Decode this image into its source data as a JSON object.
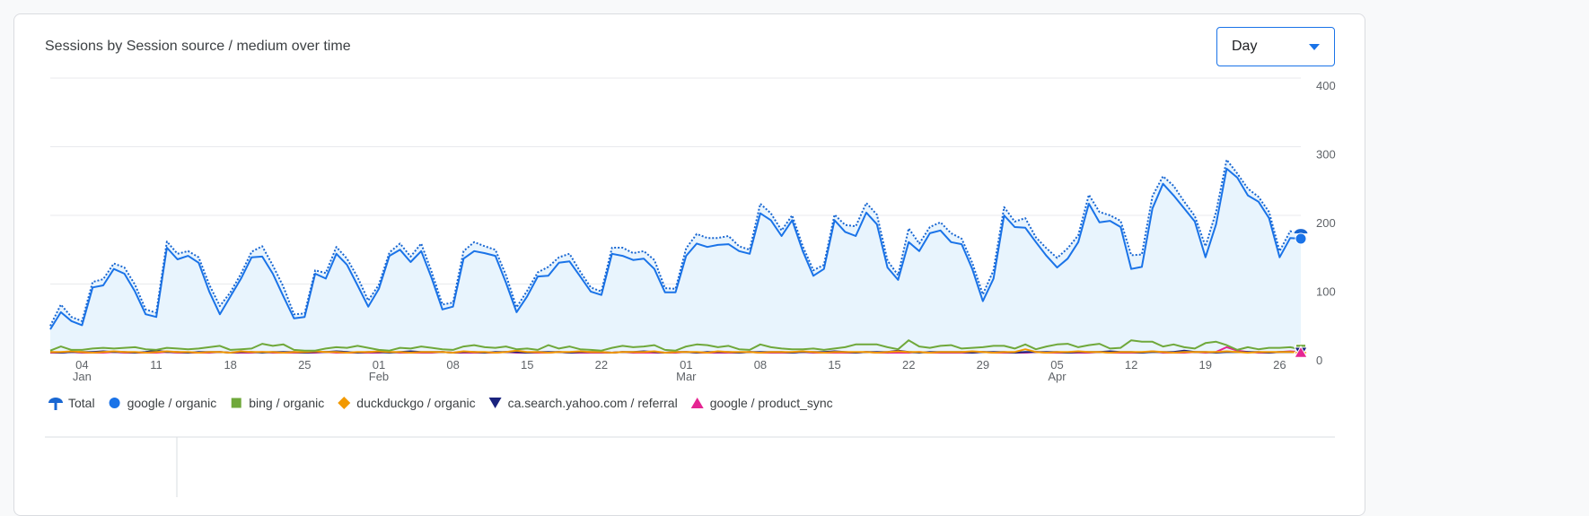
{
  "dropdown": {
    "label": "Day"
  },
  "chart_data": {
    "type": "line",
    "title": "Sessions by Session source / medium over time",
    "categories": [
      null,
      null,
      null,
      "04",
      null,
      null,
      null,
      null,
      null,
      null,
      "11",
      null,
      null,
      null,
      null,
      null,
      null,
      "18",
      null,
      null,
      null,
      null,
      null,
      null,
      "25",
      null,
      null,
      null,
      null,
      null,
      null,
      "01",
      null,
      null,
      null,
      null,
      null,
      null,
      "08",
      null,
      null,
      null,
      null,
      null,
      null,
      "15",
      null,
      null,
      null,
      null,
      null,
      null,
      "22",
      null,
      null,
      null,
      null,
      null,
      null,
      null,
      "01",
      null,
      null,
      null,
      null,
      null,
      null,
      "08",
      null,
      null,
      null,
      null,
      null,
      null,
      "15",
      null,
      null,
      null,
      null,
      null,
      null,
      "22",
      null,
      null,
      null,
      null,
      null,
      null,
      "29",
      null,
      null,
      null,
      null,
      null,
      null,
      "05",
      null,
      null,
      null,
      null,
      null,
      null,
      "12",
      null,
      null,
      null,
      null,
      null,
      null,
      "19",
      null,
      null,
      null,
      null,
      null,
      null,
      "26",
      null,
      null
    ],
    "month_labels": [
      null,
      null,
      null,
      "Jan",
      null,
      null,
      null,
      null,
      null,
      null,
      null,
      null,
      null,
      null,
      null,
      null,
      null,
      null,
      null,
      null,
      null,
      null,
      null,
      null,
      null,
      null,
      null,
      null,
      null,
      null,
      null,
      "Feb",
      null,
      null,
      null,
      null,
      null,
      null,
      null,
      null,
      null,
      null,
      null,
      null,
      null,
      null,
      null,
      null,
      null,
      null,
      null,
      null,
      null,
      null,
      null,
      null,
      null,
      null,
      null,
      null,
      "Mar",
      null,
      null,
      null,
      null,
      null,
      null,
      null,
      null,
      null,
      null,
      null,
      null,
      null,
      null,
      null,
      null,
      null,
      null,
      null,
      null,
      null,
      null,
      null,
      null,
      null,
      null,
      null,
      null,
      null,
      null,
      null,
      null,
      null,
      null,
      "Apr",
      null,
      null,
      null,
      null,
      null,
      null,
      null,
      null,
      null,
      null,
      null,
      null,
      null,
      null,
      null,
      null,
      null,
      null,
      null,
      null,
      null,
      null,
      null
    ],
    "ylim": [
      0,
      400
    ],
    "yticks": [
      0,
      100,
      200,
      300,
      400
    ],
    "grid": true,
    "series": [
      {
        "name": "Total",
        "color": "#1967d2",
        "marker": "pin",
        "style": "dotted",
        "area": "#e8f4fd",
        "values": [
          39,
          70,
          52,
          46,
          103,
          107,
          130,
          124,
          99,
          63,
          58,
          162,
          144,
          148,
          139,
          99,
          68,
          88,
          115,
          147,
          155,
          127,
          96,
          56,
          57,
          120,
          116,
          154,
          137,
          110,
          76,
          99,
          146,
          159,
          140,
          159,
          117,
          70,
          73,
          148,
          161,
          155,
          150,
          113,
          66,
          90,
          117,
          125,
          139,
          144,
          118,
          95,
          89,
          153,
          153,
          145,
          148,
          135,
          94,
          93,
          152,
          173,
          167,
          167,
          170,
          155,
          150,
          217,
          203,
          178,
          200,
          155,
          120,
          128,
          201,
          186,
          184,
          218,
          201,
          134,
          113,
          181,
          159,
          183,
          190,
          174,
          166,
          131,
          85,
          120,
          212,
          191,
          196,
          168,
          152,
          138,
          152,
          171,
          230,
          205,
          200,
          192,
          142,
          143,
          228,
          257,
          243,
          220,
          199,
          155,
          205,
          281,
          261,
          239,
          227,
          205,
          148,
          177,
          173
        ]
      },
      {
        "name": "google / organic",
        "color": "#1a73e8",
        "marker": "circle",
        "style": "solid",
        "values": [
          34,
          59,
          46,
          40,
          95,
          98,
          122,
          115,
          89,
          56,
          52,
          153,
          136,
          141,
          131,
          89,
          56,
          82,
          108,
          139,
          140,
          115,
          82,
          50,
          52,
          115,
          108,
          144,
          128,
          98,
          67,
          93,
          141,
          150,
          132,
          148,
          108,
          63,
          67,
          137,
          148,
          145,
          141,
          102,
          59,
          82,
          111,
          112,
          131,
          133,
          111,
          89,
          84,
          144,
          141,
          135,
          137,
          122,
          88,
          88,
          141,
          159,
          154,
          157,
          158,
          148,
          144,
          203,
          193,
          170,
          193,
          148,
          112,
          122,
          193,
          176,
          170,
          204,
          187,
          124,
          106,
          161,
          148,
          174,
          178,
          161,
          158,
          122,
          75,
          108,
          200,
          183,
          182,
          161,
          141,
          124,
          137,
          161,
          217,
          190,
          192,
          183,
          122,
          125,
          210,
          246,
          229,
          210,
          191,
          139,
          187,
          268,
          255,
          229,
          220,
          196,
          139,
          167,
          166
        ]
      },
      {
        "name": "bing / organic",
        "color": "#6fa83a",
        "marker": "square",
        "style": "solid",
        "values": [
          3,
          9,
          4,
          4,
          6,
          7,
          6,
          7,
          8,
          5,
          4,
          7,
          6,
          5,
          6,
          8,
          10,
          4,
          5,
          6,
          13,
          10,
          12,
          4,
          3,
          3,
          6,
          8,
          7,
          10,
          7,
          4,
          3,
          7,
          6,
          9,
          7,
          5,
          4,
          9,
          11,
          8,
          7,
          9,
          5,
          6,
          4,
          11,
          6,
          9,
          5,
          4,
          3,
          7,
          10,
          8,
          9,
          11,
          4,
          3,
          9,
          12,
          11,
          8,
          10,
          5,
          4,
          12,
          8,
          6,
          5,
          5,
          6,
          4,
          6,
          8,
          12,
          12,
          12,
          8,
          5,
          18,
          9,
          7,
          10,
          11,
          6,
          7,
          8,
          10,
          10,
          6,
          12,
          5,
          9,
          12,
          13,
          8,
          11,
          13,
          6,
          7,
          18,
          16,
          16,
          9,
          12,
          8,
          6,
          14,
          16,
          11,
          4,
          8,
          5,
          7,
          7,
          8,
          5
        ]
      },
      {
        "name": "duckduckgo / organic",
        "color": "#f29900",
        "marker": "diamond",
        "style": "solid",
        "values": [
          1,
          1,
          2,
          1,
          0,
          1,
          2,
          1,
          1,
          0,
          1,
          2,
          1,
          1,
          0,
          1,
          1,
          0,
          2,
          1,
          1,
          1,
          0,
          1,
          1,
          2,
          1,
          1,
          0,
          1,
          1,
          2,
          1,
          1,
          0,
          1,
          1,
          1,
          0,
          2,
          1,
          1,
          0,
          1,
          3,
          1,
          1,
          0,
          1,
          1,
          2,
          1,
          1,
          0,
          1,
          1,
          1,
          2,
          0,
          1,
          1,
          1,
          0,
          2,
          1,
          1,
          1,
          0,
          1,
          1,
          1,
          2,
          1,
          0,
          1,
          1,
          1,
          1,
          0,
          1,
          2,
          1,
          1,
          0,
          1,
          1,
          1,
          2,
          1,
          0,
          1,
          1,
          5,
          1,
          0,
          1,
          1,
          2,
          1,
          1,
          0,
          1,
          1,
          1,
          2,
          1,
          0,
          1,
          1,
          1,
          1,
          2,
          1,
          0,
          1,
          1,
          1,
          1,
          0
        ]
      },
      {
        "name": "ca.search.yahoo.com / referral",
        "color": "#1a237e",
        "marker": "triangle-down",
        "style": "solid",
        "values": [
          1,
          0,
          1,
          1,
          1,
          2,
          1,
          1,
          0,
          1,
          3,
          1,
          1,
          0,
          1,
          1,
          1,
          0,
          1,
          1,
          0,
          1,
          1,
          1,
          0,
          1,
          1,
          2,
          1,
          0,
          1,
          1,
          0,
          1,
          2,
          1,
          1,
          1,
          0,
          1,
          1,
          0,
          1,
          1,
          1,
          0,
          1,
          1,
          1,
          0,
          1,
          1,
          1,
          0,
          1,
          1,
          2,
          1,
          0,
          1,
          1,
          0,
          1,
          1,
          1,
          0,
          1,
          1,
          1,
          1,
          0,
          1,
          1,
          1,
          2,
          1,
          0,
          1,
          1,
          1,
          3,
          1,
          0,
          1,
          1,
          1,
          1,
          0,
          1,
          1,
          1,
          0,
          1,
          1,
          1,
          1,
          0,
          1,
          1,
          1,
          2,
          1,
          1,
          0,
          1,
          1,
          1,
          3,
          1,
          1,
          0,
          1,
          1,
          1,
          1,
          0,
          1,
          1,
          0
        ]
      },
      {
        "name": "google / product_sync",
        "color": "#e52592",
        "marker": "triangle-up",
        "style": "solid",
        "values": [
          0,
          0,
          1,
          0,
          0,
          0,
          1,
          0,
          0,
          0,
          0,
          1,
          0,
          0,
          0,
          0,
          1,
          0,
          0,
          0,
          1,
          0,
          0,
          0,
          0,
          0,
          1,
          0,
          0,
          0,
          0,
          0,
          1,
          0,
          0,
          0,
          0,
          1,
          0,
          0,
          0,
          0,
          0,
          1,
          0,
          0,
          0,
          0,
          1,
          0,
          0,
          0,
          0,
          0,
          1,
          0,
          0,
          0,
          0,
          0,
          1,
          0,
          0,
          0,
          0,
          0,
          1,
          0,
          0,
          0,
          0,
          1,
          0,
          0,
          0,
          0,
          0,
          1,
          0,
          0,
          0,
          0,
          1,
          0,
          0,
          0,
          0,
          0,
          1,
          0,
          0,
          0,
          0,
          1,
          0,
          0,
          0,
          0,
          0,
          1,
          0,
          0,
          0,
          0,
          2,
          0,
          0,
          0,
          1,
          0,
          1,
          8,
          3,
          1,
          0,
          0,
          1,
          2,
          1
        ]
      }
    ]
  }
}
